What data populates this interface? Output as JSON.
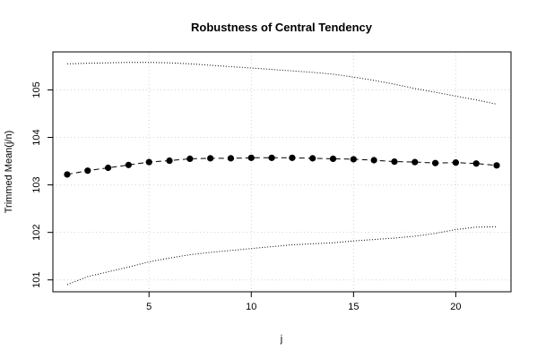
{
  "chart_data": {
    "type": "line",
    "title": "Robustness of Central Tendency",
    "xlabel": "j",
    "ylabel": "Trimmed Mean(j/n)",
    "xlim": [
      0.3,
      22.7
    ],
    "ylim": [
      100.75,
      105.8
    ],
    "xticks": [
      5,
      10,
      15,
      20
    ],
    "yticks": [
      101,
      102,
      103,
      104,
      105
    ],
    "grid": true,
    "x": [
      1,
      2,
      3,
      4,
      5,
      6,
      7,
      8,
      9,
      10,
      11,
      12,
      13,
      14,
      15,
      16,
      17,
      18,
      19,
      20,
      21,
      22
    ],
    "series": [
      {
        "role": "trimmed-mean",
        "style": "dashed-with-points",
        "color": "#000000",
        "values": [
          103.22,
          103.3,
          103.36,
          103.42,
          103.48,
          103.51,
          103.55,
          103.56,
          103.56,
          103.57,
          103.57,
          103.57,
          103.56,
          103.55,
          103.54,
          103.52,
          103.49,
          103.48,
          103.46,
          103.47,
          103.45,
          103.41
        ]
      },
      {
        "role": "upper-bound",
        "style": "dotted",
        "color": "#000000",
        "values": [
          105.55,
          105.56,
          105.57,
          105.58,
          105.58,
          105.57,
          105.55,
          105.52,
          105.49,
          105.46,
          105.43,
          105.4,
          105.37,
          105.33,
          105.27,
          105.2,
          105.12,
          105.03,
          104.95,
          104.87,
          104.79,
          104.7
        ]
      },
      {
        "role": "lower-bound",
        "style": "dotted",
        "color": "#000000",
        "values": [
          100.9,
          101.07,
          101.17,
          101.27,
          101.38,
          101.46,
          101.53,
          101.58,
          101.62,
          101.66,
          101.7,
          101.74,
          101.76,
          101.78,
          101.82,
          101.85,
          101.88,
          101.92,
          101.98,
          102.06,
          102.11,
          102.12
        ]
      }
    ]
  }
}
